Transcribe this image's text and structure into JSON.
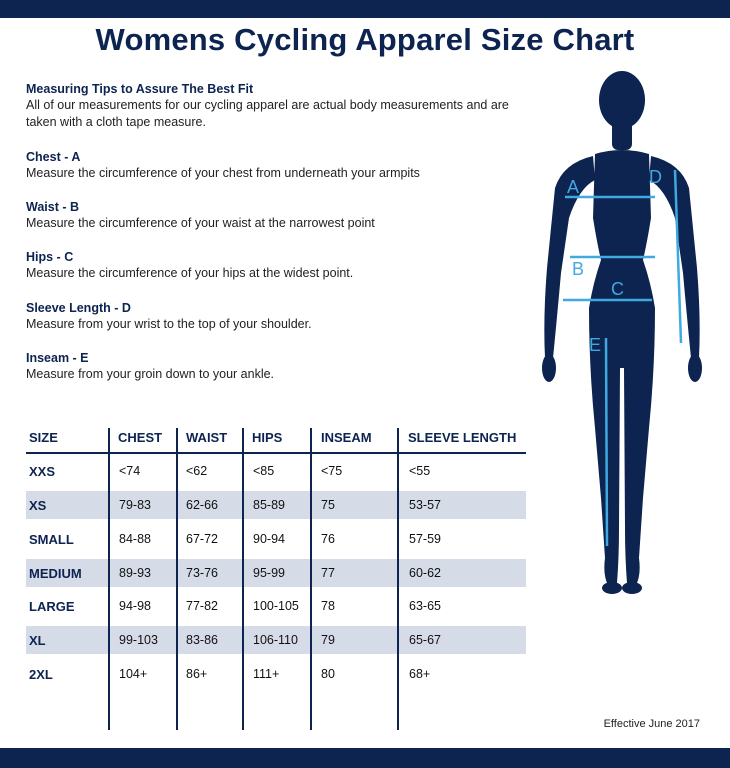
{
  "title": "Womens Cycling Apparel Size Chart",
  "tips": [
    {
      "heading": "Measuring Tips to Assure The Best Fit",
      "body": "All of our measurements for our cycling apparel are actual body measurements and are taken with a cloth tape measure."
    },
    {
      "heading": "Chest - A",
      "body": "Measure the circumference of your chest from underneath your armpits"
    },
    {
      "heading": "Waist - B",
      "body": "Measure the circumference of your waist at the narrowest point"
    },
    {
      "heading": "Hips - C",
      "body": "Measure the circumference of your hips at the widest point."
    },
    {
      "heading": "Sleeve Length - D",
      "body": "Measure from your wrist to the top of your shoulder."
    },
    {
      "heading": "Inseam - E",
      "body": "Measure from your groin down to your ankle."
    }
  ],
  "table": {
    "headers": [
      "SIZE",
      "CHEST",
      "WAIST",
      "HIPS",
      "INSEAM",
      "SLEEVE LENGTH"
    ],
    "rows": [
      [
        "XXS",
        "<74",
        "<62",
        "<85",
        "<75",
        "<55"
      ],
      [
        "XS",
        "79-83",
        "62-66",
        "85-89",
        "75",
        "53-57"
      ],
      [
        "SMALL",
        "84-88",
        "67-72",
        "90-94",
        "76",
        "57-59"
      ],
      [
        "MEDIUM",
        "89-93",
        "73-76",
        "95-99",
        "77",
        "60-62"
      ],
      [
        "LARGE",
        "94-98",
        "77-82",
        "100-105",
        "78",
        "63-65"
      ],
      [
        "XL",
        "99-103",
        "83-86",
        "106-110",
        "79",
        "65-67"
      ],
      [
        "2XL",
        "104+",
        "86+",
        "111+",
        "80",
        "68+"
      ]
    ]
  },
  "figure_labels": {
    "a": "A",
    "b": "B",
    "c": "C",
    "d": "D",
    "e": "E"
  },
  "effective": "Effective June 2017",
  "colors": {
    "navy": "#0d2350",
    "shade": "#d5dbe7",
    "measure_line": "#3fa9e0"
  }
}
